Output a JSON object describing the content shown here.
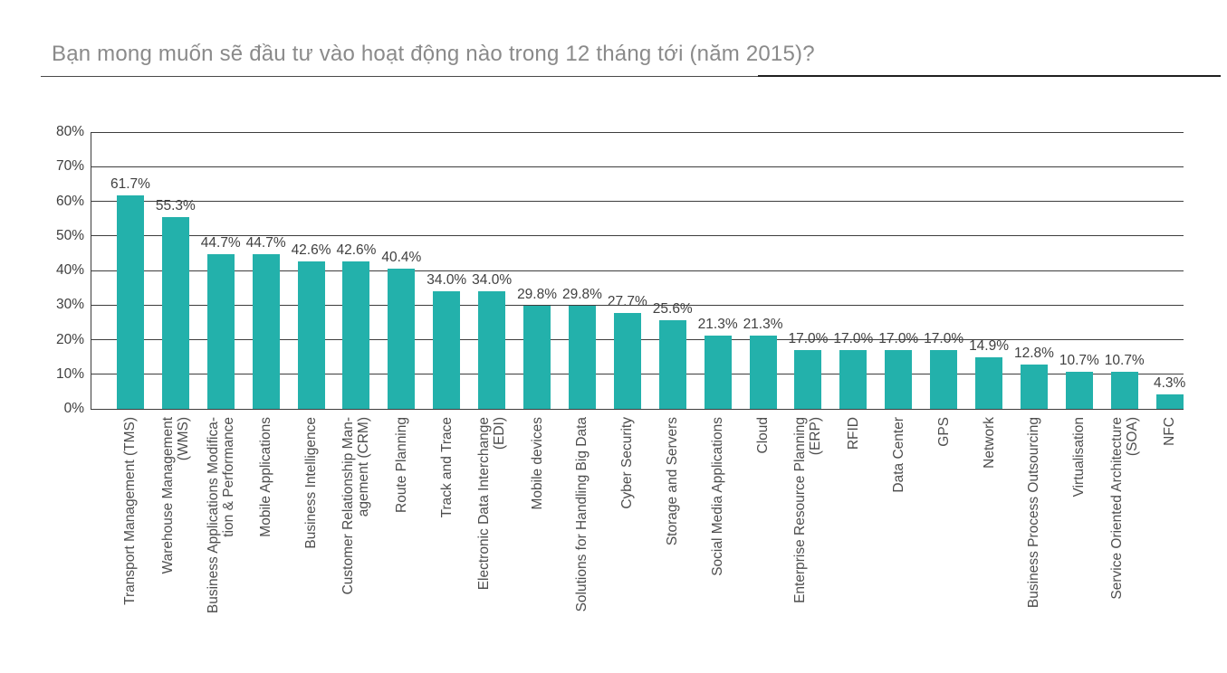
{
  "title": "Bạn mong muốn sẽ đầu tư vào hoạt động nào trong 12 tháng tới (năm 2015)?",
  "colors": {
    "bar": "#23B1AB",
    "title_text": "#8a8a8a",
    "axis_and_grid": "#3d3d3d",
    "data_labels": "#404040",
    "background": "#ffffff"
  },
  "chart_data": {
    "type": "bar",
    "title": "Bạn mong muốn sẽ đầu tư vào hoạt động nào trong 12 tháng tới (năm 2015)?",
    "categories": [
      "Transport Management (TMS)",
      "Warehouse Management\n(WMS)",
      "Business Applications Modifica-\ntion & Performance",
      "Mobile Applications",
      "Business Intelligence",
      "Customer Relationship Man-\nagement (CRM)",
      "Route Planning",
      "Track and Trace",
      "Electronic Data Interchange\n(EDI)",
      "Mobile devices",
      "Solutions for Handling Big Data",
      "Cyber Security",
      "Storage and Servers",
      "Social Media Applications",
      "Cloud",
      "Enterprise Resource Planning\n(ERP)",
      "RFID",
      "Data Center",
      "GPS",
      "Network",
      "Business Process Outsourcing",
      "Virtualisation",
      "Service Oriented Architecture\n(SOA)",
      "NFC"
    ],
    "values": [
      61.7,
      55.3,
      44.7,
      44.7,
      42.6,
      42.6,
      40.4,
      34.0,
      34.0,
      29.8,
      29.8,
      27.7,
      25.6,
      21.3,
      21.3,
      17.0,
      17.0,
      17.0,
      17.0,
      14.9,
      12.8,
      10.7,
      10.7,
      4.3
    ],
    "value_labels": [
      "61.7%",
      "55.3%",
      "44.7%",
      "44.7%",
      "42.6%",
      "42.6%",
      "40.4%",
      "34.0%",
      "34.0%",
      "29.8%",
      "29.8%",
      "27.7%",
      "25.6%",
      "21.3%",
      "21.3%",
      "17.0%",
      "17.0%",
      "17.0%",
      "17.0%",
      "14.9%",
      "12.8%",
      "10.7%",
      "10.7%",
      "4.3%"
    ],
    "xlabel": "",
    "ylabel": "",
    "ylim": [
      0,
      80
    ],
    "ytick_step": 10,
    "ytick_labels": [
      "0%",
      "10%",
      "20%",
      "30%",
      "40%",
      "50%",
      "60%",
      "70%",
      "80%"
    ],
    "grid": true,
    "legend": "none",
    "category_label_rotation_deg": 90
  }
}
